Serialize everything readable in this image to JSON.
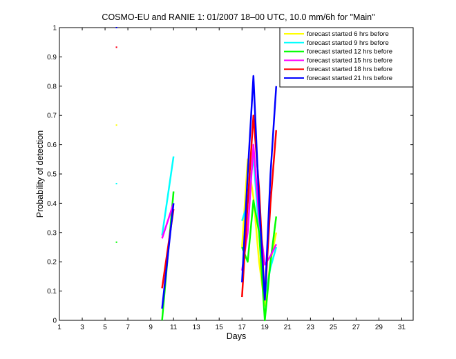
{
  "chart_data": {
    "type": "line",
    "title": "COSMO-EU and RANIE 1: 01/2007 18–00 UTC, 10.0 mm/6h for \"Main\"",
    "xlabel": "Days",
    "ylabel": "Probability of detection",
    "xlim": [
      1,
      32
    ],
    "ylim": [
      0,
      1
    ],
    "xticks": [
      1,
      3,
      5,
      7,
      9,
      11,
      13,
      15,
      17,
      19,
      21,
      23,
      25,
      27,
      29,
      31
    ],
    "yticks": [
      0,
      0.1,
      0.2,
      0.3,
      0.4,
      0.5,
      0.6,
      0.7,
      0.8,
      0.9,
      1
    ],
    "ytick_labels": [
      "0",
      "0.1",
      "0.2",
      "0.3",
      "0.4",
      "0.5",
      "0.6",
      "0.7",
      "0.8",
      "0.9",
      "1"
    ],
    "grid": false,
    "legend_position": "top-right",
    "series": [
      {
        "name": "forecast started 6 hrs before",
        "color": "#ffff00",
        "points": [
          [
            6,
            0.667
          ],
          null,
          [
            17,
            0.25
          ],
          [
            17.5,
            0.55
          ],
          [
            18,
            0.42
          ],
          [
            18.5,
            0.2
          ],
          [
            19,
            0.05
          ],
          [
            19.5,
            0.2
          ],
          [
            20,
            0.3
          ]
        ]
      },
      {
        "name": "forecast started 9 hrs before",
        "color": "#00ffff",
        "points": [
          [
            6,
            0.467
          ],
          null,
          [
            10,
            0.29
          ],
          [
            11,
            0.56
          ],
          null,
          [
            17,
            0.34
          ],
          [
            17.5,
            0.4
          ],
          [
            18,
            0.56
          ],
          [
            18.5,
            0.3
          ],
          [
            19,
            0.08
          ],
          [
            19.5,
            0.18
          ],
          [
            20,
            0.25
          ]
        ]
      },
      {
        "name": "forecast started 12 hrs before",
        "color": "#00ff00",
        "points": [
          [
            6,
            0.267
          ],
          null,
          [
            10,
            0.0
          ],
          [
            11,
            0.44
          ],
          null,
          [
            17,
            0.25
          ],
          [
            17.5,
            0.2
          ],
          [
            18,
            0.41
          ],
          [
            18.5,
            0.3
          ],
          [
            19,
            0.0
          ],
          [
            19.5,
            0.2
          ],
          [
            20,
            0.355
          ]
        ]
      },
      {
        "name": "forecast started 15 hrs before",
        "color": "#ff00ff",
        "points": [
          [
            6,
            0.933
          ],
          null,
          [
            10,
            0.28
          ],
          [
            11,
            0.4
          ],
          null,
          [
            17,
            0.17
          ],
          [
            17.5,
            0.3
          ],
          [
            18,
            0.6
          ],
          [
            18.5,
            0.35
          ],
          [
            19,
            0.19
          ],
          [
            19.5,
            0.22
          ],
          [
            20,
            0.26
          ]
        ]
      },
      {
        "name": "forecast started 18 hrs before",
        "color": "#ff0000",
        "points": [
          [
            6,
            0.933
          ],
          null,
          [
            10,
            0.11
          ],
          [
            11,
            0.38
          ],
          null,
          [
            17,
            0.08
          ],
          [
            17.5,
            0.4
          ],
          [
            18,
            0.7
          ],
          [
            18.5,
            0.45
          ],
          [
            19,
            0.07
          ],
          [
            19.5,
            0.4
          ],
          [
            20,
            0.65
          ]
        ]
      },
      {
        "name": "forecast started 21 hrs before",
        "color": "#0000ff",
        "points": [
          [
            6,
            1.0
          ],
          null,
          [
            10,
            0.04
          ],
          [
            11,
            0.4
          ],
          null,
          [
            17,
            0.13
          ],
          [
            17.5,
            0.5
          ],
          [
            18,
            0.835
          ],
          [
            18.5,
            0.4
          ],
          [
            19,
            0.07
          ],
          [
            19.5,
            0.5
          ],
          [
            20,
            0.8
          ]
        ]
      }
    ]
  }
}
